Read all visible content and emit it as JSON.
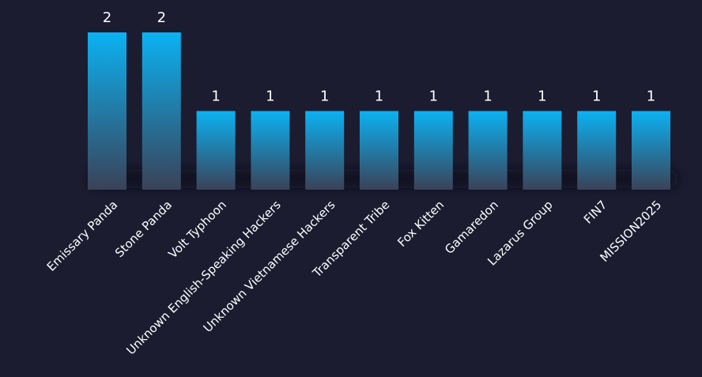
{
  "chart_data": {
    "type": "bar",
    "categories": [
      "Emissary Panda",
      "Stone Panda",
      "Volt Typhoon",
      "Unknown English-Speaking Hackers",
      "Unknown Vietnamese Hackers",
      "Transparent Tribe",
      "Fox Kitten",
      "Gamaredon",
      "Lazarus Group",
      "FIN7",
      "MISSION2025"
    ],
    "values": [
      2,
      2,
      1,
      1,
      1,
      1,
      1,
      1,
      1,
      1,
      1
    ],
    "title": "",
    "xlabel": "",
    "ylabel": "",
    "ylim": [
      0,
      2
    ],
    "grid": false,
    "legend": "none",
    "data_labels": true
  },
  "colors": {
    "background": "#1b1c30",
    "bar_top": "#0bb2f2",
    "bar_bottom": "#3a4257",
    "text": "#ffffff"
  }
}
